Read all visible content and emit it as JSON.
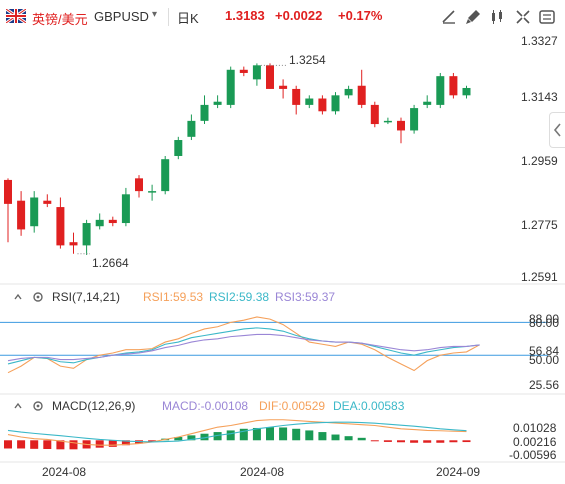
{
  "header": {
    "pair_name_cn": "英镑/美元",
    "pair_code": "GBPUSD",
    "caret": "▾",
    "period": "日K",
    "price": "1.3183",
    "change": "+0.0022",
    "change_pct": "+0.17%",
    "toolbar": [
      "draw-line-icon",
      "brush-icon",
      "candle-type-icon",
      "fullscreen-icon",
      "settings-icon"
    ]
  },
  "main_axis": {
    "ticks": [
      "1.3327",
      "1.3143",
      "1.2959",
      "1.2775",
      "1.2591"
    ],
    "high_marker": "1.3254",
    "low_marker": "1.2664"
  },
  "rsi": {
    "title": "RSI(7,14,21)",
    "rsi1": "RSI1:59.53",
    "rsi2": "RSI2:59.38",
    "rsi3": "RSI3:59.37",
    "ticks": [
      "88.00",
      "80.00",
      "56.84",
      "50.00",
      "25.56"
    ]
  },
  "macd": {
    "title": "MACD(12,26,9)",
    "macd": "MACD:-0.00108",
    "dif": "DIF:0.00529",
    "dea": "DEA:0.00583",
    "ticks": [
      "0.01028",
      "0.00216",
      "-0.00596"
    ]
  },
  "x_axis": [
    "2024-08",
    "2024-08",
    "2024-09"
  ],
  "colors": {
    "up": "#e02020",
    "down": "#1a9a55",
    "rsi1": "#f5a05a",
    "rsi2": "#3bb8c8",
    "rsi3": "#9a86d6",
    "dif": "#f5a05a",
    "dea": "#3bb8c8"
  },
  "chart_data": [
    {
      "type": "candlestick",
      "title": "",
      "ylim": [
        1.2591,
        1.3327
      ],
      "candles": [
        {
          "o": 1.2895,
          "c": 1.282,
          "h": 1.29,
          "l": 1.27
        },
        {
          "o": 1.283,
          "c": 1.274,
          "h": 1.286,
          "l": 1.272
        },
        {
          "o": 1.275,
          "c": 1.284,
          "h": 1.286,
          "l": 1.273
        },
        {
          "o": 1.283,
          "c": 1.282,
          "h": 1.285,
          "l": 1.281
        },
        {
          "o": 1.281,
          "c": 1.269,
          "h": 1.284,
          "l": 1.268
        },
        {
          "o": 1.27,
          "c": 1.269,
          "h": 1.273,
          "l": 1.2664
        },
        {
          "o": 1.269,
          "c": 1.276,
          "h": 1.277,
          "l": 1.266
        },
        {
          "o": 1.275,
          "c": 1.277,
          "h": 1.279,
          "l": 1.274
        },
        {
          "o": 1.277,
          "c": 1.276,
          "h": 1.278,
          "l": 1.275
        },
        {
          "o": 1.276,
          "c": 1.285,
          "h": 1.287,
          "l": 1.275
        },
        {
          "o": 1.29,
          "c": 1.286,
          "h": 1.291,
          "l": 1.284
        },
        {
          "o": 1.286,
          "c": 1.286,
          "h": 1.288,
          "l": 1.283
        },
        {
          "o": 1.286,
          "c": 1.296,
          "h": 1.297,
          "l": 1.285
        },
        {
          "o": 1.297,
          "c": 1.302,
          "h": 1.303,
          "l": 1.296
        },
        {
          "o": 1.303,
          "c": 1.308,
          "h": 1.31,
          "l": 1.302
        },
        {
          "o": 1.308,
          "c": 1.313,
          "h": 1.316,
          "l": 1.307
        },
        {
          "o": 1.313,
          "c": 1.314,
          "h": 1.316,
          "l": 1.312
        },
        {
          "o": 1.313,
          "c": 1.324,
          "h": 1.325,
          "l": 1.312
        },
        {
          "o": 1.324,
          "c": 1.323,
          "h": 1.325,
          "l": 1.322
        },
        {
          "o": 1.321,
          "c": 1.3254,
          "h": 1.326,
          "l": 1.319
        },
        {
          "o": 1.3254,
          "c": 1.318,
          "h": 1.326,
          "l": 1.318
        },
        {
          "o": 1.319,
          "c": 1.318,
          "h": 1.321,
          "l": 1.315
        },
        {
          "o": 1.318,
          "c": 1.313,
          "h": 1.319,
          "l": 1.31
        },
        {
          "o": 1.313,
          "c": 1.315,
          "h": 1.316,
          "l": 1.312
        },
        {
          "o": 1.315,
          "c": 1.311,
          "h": 1.316,
          "l": 1.31
        },
        {
          "o": 1.311,
          "c": 1.316,
          "h": 1.317,
          "l": 1.31
        },
        {
          "o": 1.316,
          "c": 1.318,
          "h": 1.319,
          "l": 1.315
        },
        {
          "o": 1.319,
          "c": 1.313,
          "h": 1.324,
          "l": 1.312
        },
        {
          "o": 1.313,
          "c": 1.307,
          "h": 1.314,
          "l": 1.306
        },
        {
          "o": 1.308,
          "c": 1.308,
          "h": 1.309,
          "l": 1.307
        },
        {
          "o": 1.308,
          "c": 1.305,
          "h": 1.309,
          "l": 1.301
        },
        {
          "o": 1.305,
          "c": 1.312,
          "h": 1.313,
          "l": 1.304
        },
        {
          "o": 1.313,
          "c": 1.314,
          "h": 1.316,
          "l": 1.312
        },
        {
          "o": 1.313,
          "c": 1.322,
          "h": 1.323,
          "l": 1.312
        },
        {
          "o": 1.322,
          "c": 1.316,
          "h": 1.323,
          "l": 1.315
        },
        {
          "o": 1.316,
          "c": 1.3183,
          "h": 1.319,
          "l": 1.315
        }
      ]
    },
    {
      "type": "line",
      "title": "RSI(7,14,21)",
      "ylim": [
        20,
        95
      ],
      "series": [
        {
          "name": "RSI1",
          "values": [
            34,
            40,
            48,
            47,
            40,
            38,
            46,
            50,
            52,
            55,
            55,
            56,
            62,
            65,
            70,
            74,
            76,
            80,
            82,
            85,
            83,
            78,
            70,
            62,
            60,
            58,
            62,
            60,
            55,
            48,
            42,
            36,
            45,
            50,
            52,
            53,
            59.5
          ]
        },
        {
          "name": "RSI2",
          "values": [
            42,
            45,
            48,
            47,
            44,
            43,
            46,
            48,
            50,
            52,
            53,
            55,
            60,
            62,
            66,
            68,
            70,
            72,
            74,
            75,
            74,
            72,
            68,
            65,
            63,
            62,
            62,
            61,
            58,
            55,
            52,
            50,
            53,
            55,
            57,
            58,
            59.4
          ]
        },
        {
          "name": "RSI3",
          "values": [
            45,
            47,
            48,
            48,
            46,
            46,
            47,
            48,
            50,
            51,
            52,
            54,
            57,
            59,
            62,
            64,
            65,
            67,
            68,
            69,
            69,
            68,
            66,
            64,
            63,
            62,
            62,
            61,
            59,
            57,
            55,
            54,
            55,
            57,
            58,
            58,
            59.4
          ]
        }
      ]
    },
    {
      "type": "bar",
      "title": "MACD(12,26,9)",
      "ylim": [
        -0.012,
        0.016
      ],
      "macd_hist": [
        -0.005,
        -0.005,
        -0.0052,
        -0.0053,
        -0.0055,
        -0.0055,
        -0.005,
        -0.0045,
        -0.004,
        -0.003,
        -0.002,
        -0.001,
        0.001,
        0.002,
        0.003,
        0.004,
        0.005,
        0.006,
        0.007,
        0.0075,
        0.008,
        0.0078,
        0.007,
        0.006,
        0.005,
        0.0035,
        0.0025,
        0.0015,
        -0.0005,
        -0.001,
        -0.0012,
        -0.0015,
        -0.0015,
        -0.0015,
        -0.0012,
        -0.00108
      ],
      "dif": [
        0.0035,
        0.002,
        0.001,
        0.0005,
        -0.0005,
        -0.0015,
        -0.0025,
        -0.003,
        -0.003,
        -0.0025,
        -0.002,
        -0.001,
        0.0005,
        0.002,
        0.004,
        0.006,
        0.008,
        0.009,
        0.0105,
        0.012,
        0.0125,
        0.0125,
        0.012,
        0.0115,
        0.011,
        0.0105,
        0.01,
        0.0095,
        0.009,
        0.008,
        0.007,
        0.0065,
        0.006,
        0.0058,
        0.0055,
        0.00529
      ],
      "dea": [
        0.006,
        0.005,
        0.0042,
        0.0035,
        0.0028,
        0.002,
        0.0012,
        0.0005,
        0,
        -0.0005,
        -0.0008,
        -0.001,
        -0.0008,
        -0.0005,
        0.0005,
        0.0015,
        0.003,
        0.004,
        0.0055,
        0.007,
        0.008,
        0.009,
        0.0098,
        0.0104,
        0.0108,
        0.011,
        0.011,
        0.0108,
        0.0104,
        0.0098,
        0.0092,
        0.0086,
        0.0078,
        0.007,
        0.0064,
        0.00583
      ]
    }
  ]
}
